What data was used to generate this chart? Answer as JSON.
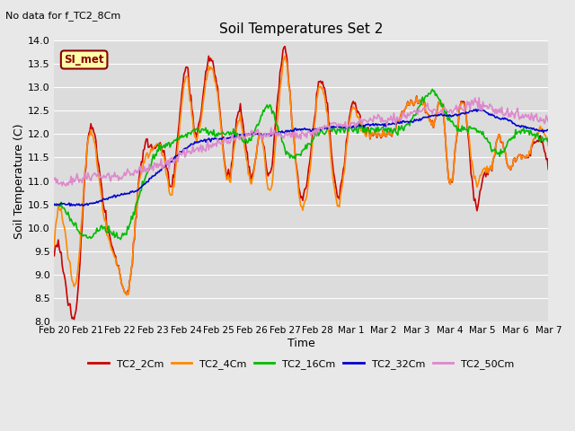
{
  "title": "Soil Temperatures Set 2",
  "xlabel": "Time",
  "ylabel": "Soil Temperature (C)",
  "top_left_text": "No data for f_TC2_8Cm",
  "annotation_text": "SI_met",
  "ylim": [
    8.0,
    14.0
  ],
  "yticks": [
    8.0,
    8.5,
    9.0,
    9.5,
    10.0,
    10.5,
    11.0,
    11.5,
    12.0,
    12.5,
    13.0,
    13.5,
    14.0
  ],
  "fig_bg": "#e8e8e8",
  "plot_bg": "#dcdcdc",
  "grid_color": "#ffffff",
  "series_colors": {
    "TC2_2Cm": "#cc0000",
    "TC2_4Cm": "#ff8800",
    "TC2_16Cm": "#00bb00",
    "TC2_32Cm": "#0000cc",
    "TC2_50Cm": "#dd88cc"
  },
  "linewidth": 1.2,
  "x_tick_labels": [
    "Feb 20",
    "Feb 21",
    "Feb 22",
    "Feb 23",
    "Feb 24",
    "Feb 25",
    "Feb 26",
    "Feb 27",
    "Feb 28",
    "Mar 1",
    "Mar 2",
    "Mar 3",
    "Mar 4",
    "Mar 5",
    "Mar 6",
    "Mar 7"
  ]
}
